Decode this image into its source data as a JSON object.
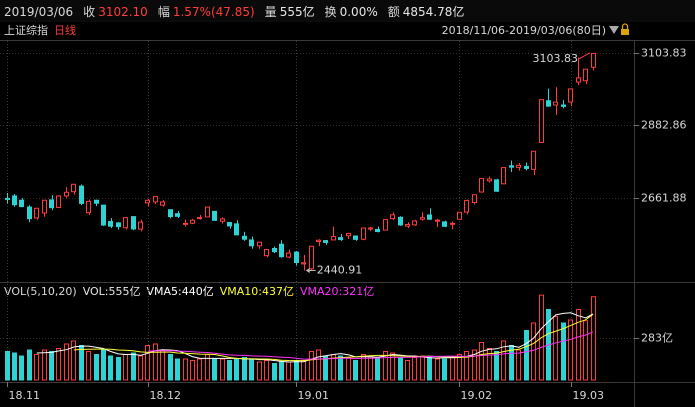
{
  "header": {
    "date": "2019/03/06",
    "items": [
      {
        "label": "收",
        "value": "3102.10",
        "color": "#ff3c3c"
      },
      {
        "label": "幅",
        "value": "1.57%(47.85)",
        "color": "#ff3c3c"
      },
      {
        "label": "量",
        "value": "555亿",
        "color": "#e6e6e6"
      },
      {
        "label": "换",
        "value": "0.00%",
        "color": "#e6e6e6"
      },
      {
        "label": "额",
        "value": "4854.78亿",
        "color": "#e6e6e6"
      }
    ]
  },
  "chart_data": [
    {
      "type": "candlestick",
      "title": "上证综指",
      "subtitle": "日线",
      "range_label": "2018/11/06-2019/03/06(80日)",
      "categories": [
        "18.11",
        null,
        null,
        null,
        null,
        null,
        null,
        null,
        null,
        null,
        null,
        null,
        null,
        null,
        null,
        null,
        null,
        null,
        null,
        "18.12",
        null,
        null,
        null,
        null,
        null,
        null,
        null,
        null,
        null,
        null,
        null,
        null,
        null,
        null,
        null,
        null,
        null,
        null,
        null,
        "19.01",
        null,
        null,
        null,
        null,
        null,
        null,
        null,
        null,
        null,
        null,
        null,
        null,
        null,
        null,
        null,
        null,
        null,
        null,
        null,
        null,
        null,
        "19.02",
        null,
        null,
        null,
        null,
        null,
        null,
        null,
        null,
        null,
        null,
        null,
        null,
        null,
        null,
        "19.03",
        null,
        null,
        null
      ],
      "open": [
        2660.5,
        2668,
        2655,
        2634,
        2601,
        2616,
        2656,
        2633,
        2668,
        2681,
        2698,
        2617,
        2655,
        2640,
        2590,
        2586,
        2571,
        2605,
        2567,
        2647,
        2650,
        2640,
        2626,
        2614,
        2583,
        2585,
        2600,
        2604,
        2621,
        2591,
        2587,
        2583,
        2545,
        2534,
        2516,
        2486,
        2508,
        2521,
        2482,
        2497,
        2461,
        2446,
        2529,
        2532,
        2534,
        2541,
        2547,
        2546,
        2536,
        2567,
        2566,
        2564,
        2599,
        2603,
        2576,
        2580,
        2597,
        2610,
        2592,
        2589,
        2583,
        2597,
        2619,
        2648,
        2680,
        2714,
        2717,
        2705,
        2760,
        2755,
        2758,
        2749,
        2831,
        2958,
        2945,
        2945,
        2954,
        3015,
        3019,
        3060
      ],
      "high": [
        2677,
        2674,
        2661,
        2640,
        2632,
        2656,
        2670,
        2670,
        2695,
        2704,
        2703,
        2657,
        2656,
        2640,
        2601,
        2588,
        2604,
        2606,
        2596,
        2659,
        2666,
        2655,
        2627,
        2622,
        2596,
        2598,
        2610,
        2635,
        2621,
        2603,
        2588,
        2594,
        2559,
        2544,
        2529,
        2505,
        2514,
        2533,
        2505,
        2500,
        2488,
        2515,
        2536,
        2534,
        2575,
        2552,
        2556,
        2546,
        2571,
        2574,
        2575,
        2597,
        2618,
        2606,
        2588,
        2595,
        2618,
        2630,
        2598,
        2593,
        2590,
        2618,
        2657,
        2672,
        2722,
        2727,
        2720,
        2755,
        2776,
        2768,
        2770,
        2804,
        2961,
        2995,
        2999,
        2960,
        2996,
        3090,
        3055,
        3103.83
      ],
      "low": [
        2645,
        2635,
        2634,
        2588,
        2596,
        2605,
        2625,
        2631,
        2663,
        2672,
        2640,
        2610,
        2637,
        2577,
        2570,
        2566,
        2566,
        2564,
        2560,
        2636,
        2643,
        2635,
        2600,
        2601,
        2575,
        2582,
        2596,
        2604,
        2592,
        2584,
        2568,
        2548,
        2531,
        2507,
        2507,
        2481,
        2494,
        2480,
        2478,
        2456,
        2440.91,
        2441,
        2515,
        2519,
        2534,
        2531,
        2537,
        2531,
        2533,
        2561,
        2557,
        2563,
        2594,
        2577,
        2570,
        2577,
        2593,
        2596,
        2573,
        2573,
        2567,
        2597,
        2612,
        2642,
        2679,
        2709,
        2680,
        2705,
        2741,
        2745,
        2746,
        2731,
        2831,
        2940,
        2915,
        2935,
        2942,
        3006,
        3009,
        3050
      ],
      "close": [
        2659.36,
        2641.34,
        2635.63,
        2598.87,
        2630.52,
        2654.88,
        2632.24,
        2668.17,
        2679.11,
        2703.51,
        2645.43,
        2651.51,
        2645.85,
        2579.48,
        2575.81,
        2574.68,
        2601.74,
        2567.44,
        2588.19,
        2654.8,
        2665.96,
        2649.81,
        2605.18,
        2605.89,
        2584.58,
        2594.09,
        2602.15,
        2634.05,
        2593.74,
        2597.97,
        2576.65,
        2549.56,
        2536.27,
        2516.25,
        2527.01,
        2504.82,
        2498.29,
        2483.09,
        2493.9,
        2465.29,
        2464.36,
        2514.87,
        2533.09,
        2526.46,
        2544.34,
        2535.1,
        2553.83,
        2535.77,
        2570.34,
        2570.42,
        2559.64,
        2596.01,
        2610.51,
        2579.7,
        2581,
        2591.69,
        2601.72,
        2596.98,
        2594.25,
        2575.58,
        2584.57,
        2618.23,
        2653.9,
        2671.89,
        2721.07,
        2719.7,
        2682.39,
        2754.36,
        2755.65,
        2761.22,
        2751.8,
        2804.23,
        2961.28,
        2941.52,
        2953.82,
        2940.95,
        2994.01,
        3027.58,
        3054.25,
        3102.1
      ],
      "ylim": [
        2412,
        3143
      ],
      "yticks": [
        3103.83,
        2882.86,
        2661.88
      ],
      "grid": true,
      "up_color": "#ff3c3c",
      "down_color": "#2fd3d3",
      "high_label": 3103.83,
      "low_label": 2440.91
    },
    {
      "type": "bar",
      "legend_title": "VOL(5,10,20)",
      "series": [
        {
          "name": "VOL:555亿",
          "color": "#e6e6e6",
          "values": [
            190,
            180,
            160,
            200,
            170,
            200,
            190,
            210,
            240,
            260,
            230,
            190,
            170,
            200,
            160,
            150,
            170,
            180,
            160,
            230,
            240,
            200,
            170,
            140,
            140,
            130,
            140,
            170,
            140,
            140,
            130,
            140,
            150,
            140,
            120,
            130,
            110,
            120,
            120,
            130,
            130,
            190,
            200,
            160,
            170,
            160,
            150,
            130,
            170,
            160,
            150,
            190,
            180,
            150,
            130,
            150,
            160,
            150,
            140,
            140,
            150,
            170,
            190,
            200,
            250,
            210,
            190,
            260,
            230,
            200,
            330,
            380,
            566,
            470,
            424,
            380,
            400,
            470,
            395,
            555
          ]
        }
      ],
      "averages": [
        {
          "name": "VMA5:440亿",
          "color": "#ffffff",
          "period": 5
        },
        {
          "name": "VMA10:437亿",
          "color": "#ffff33",
          "period": 10
        },
        {
          "name": "VMA20:321亿",
          "color": "#ff33ff",
          "period": 20
        }
      ],
      "ylim": [
        0,
        600
      ],
      "yticks": [
        {
          "value": 283,
          "label": "283亿"
        }
      ]
    }
  ]
}
